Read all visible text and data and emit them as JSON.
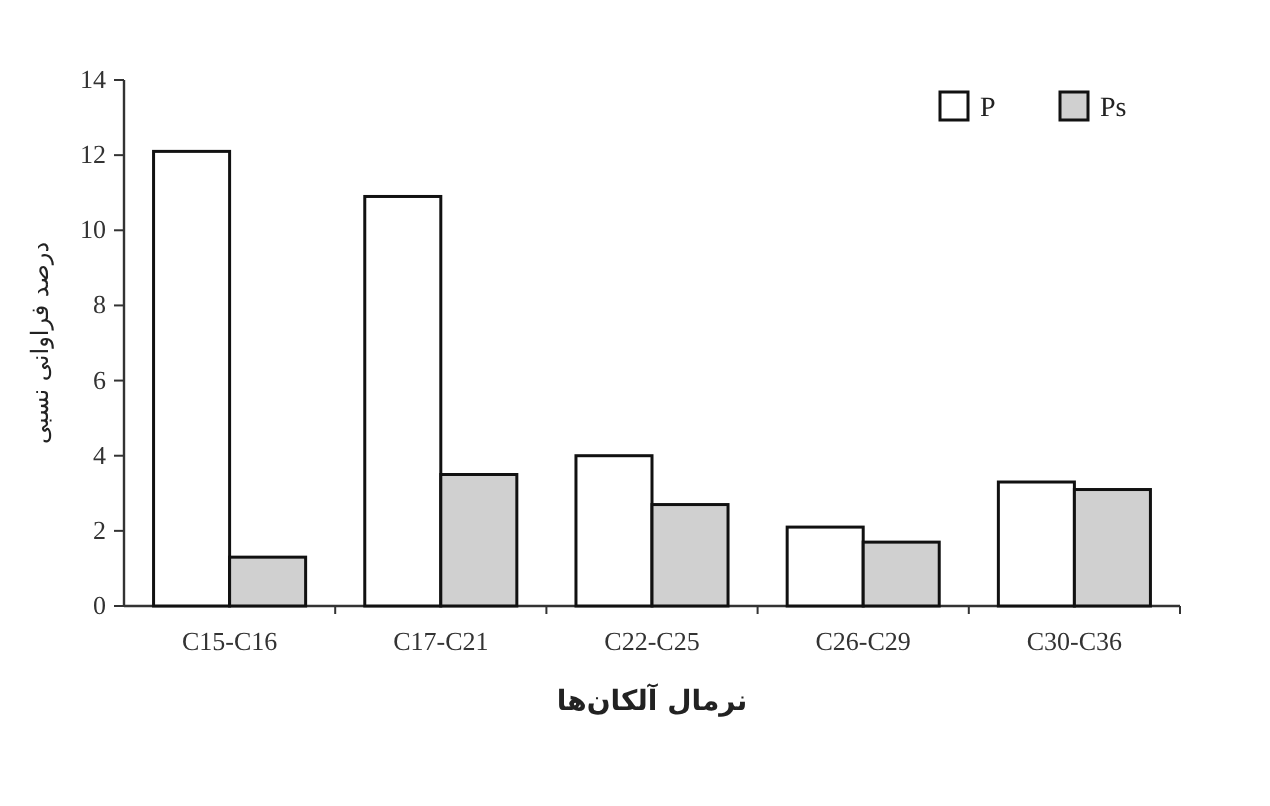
{
  "chart_data": {
    "type": "bar",
    "xlabel": "نرمال آلکان‌ها",
    "ylabel": "درصد فراوانی نسبی",
    "categories": [
      "C15-C16",
      "C17-C21",
      "C22-C25",
      "C26-C29",
      "C30-C36"
    ],
    "series": [
      {
        "name": "P",
        "color": "#ffffff",
        "values": [
          12.1,
          10.9,
          4.0,
          2.1,
          3.3
        ]
      },
      {
        "name": "Ps",
        "color": "#d0d0d0",
        "values": [
          1.3,
          3.5,
          2.7,
          1.7,
          3.1
        ]
      }
    ],
    "ylim": [
      0,
      14
    ],
    "yticks": [
      0,
      2,
      4,
      6,
      8,
      10,
      12,
      14
    ],
    "grid": false,
    "legend": "top right"
  }
}
